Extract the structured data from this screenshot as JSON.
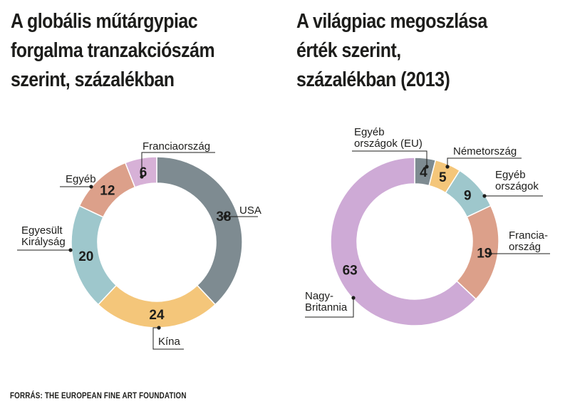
{
  "chart_data": [
    {
      "type": "pie",
      "title_lines": [
        "A globális műtárgypiac",
        "forgalma tranzakciószám",
        "szerint, százalékban"
      ],
      "categories": [
        "USA",
        "Kína",
        "Egyesült Királyság",
        "Egyéb",
        "Franciaország"
      ],
      "label_lines": [
        [
          "USA"
        ],
        [
          "Kína"
        ],
        [
          "Egyesült",
          "Királyság"
        ],
        [
          "Egyéb"
        ],
        [
          "Franciaország"
        ]
      ],
      "values": [
        38,
        24,
        20,
        12,
        6
      ],
      "values_text": [
        "38",
        "24",
        "20",
        "12",
        "6"
      ],
      "colors": [
        "#7e8b91",
        "#f4c67a",
        "#9ec7cc",
        "#dca08a",
        "#d7b1d7"
      ]
    },
    {
      "type": "pie",
      "title_lines": [
        "A világpiac megoszlása",
        "érték szerint,",
        "százalékban (2013)"
      ],
      "categories": [
        "Egyéb országok (EU)",
        "Németország",
        "Egyéb országok",
        "Franciaország",
        "Nagy-Britannia"
      ],
      "label_lines": [
        [
          "Egyéb",
          "országok (EU)"
        ],
        [
          "Németország"
        ],
        [
          "Egyéb",
          "országok"
        ],
        [
          "Francia-",
          "ország"
        ],
        [
          "Nagy-",
          "Britannia"
        ]
      ],
      "values": [
        4,
        5,
        9,
        19,
        63
      ],
      "values_text": [
        "4",
        "5",
        "9",
        "19",
        "63"
      ],
      "colors": [
        "#7e8b91",
        "#f4c67a",
        "#9ec7cc",
        "#dca08a",
        "#ceaad6"
      ]
    }
  ],
  "source": "FORRÁS: THE EUROPEAN FINE ART FOUNDATION"
}
